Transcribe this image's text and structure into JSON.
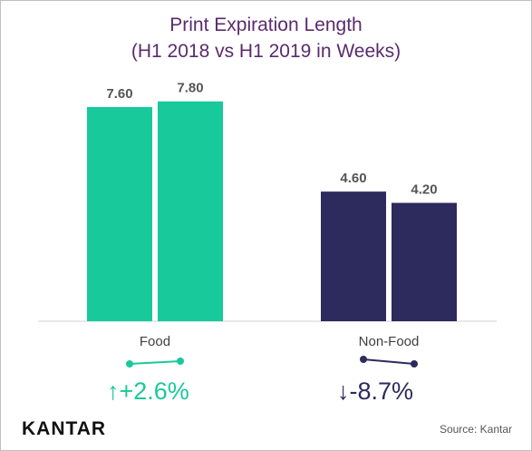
{
  "chart_data": {
    "type": "bar",
    "title": "Print Expiration Length",
    "subtitle": "(H1 2018 vs H1 2019 in Weeks)",
    "categories": [
      "Food",
      "Non-Food"
    ],
    "series": [
      {
        "values": [
          7.6,
          7.8
        ]
      },
      {
        "values": [
          4.6,
          4.2
        ]
      }
    ],
    "data_labels": [
      [
        "7.60",
        "7.80"
      ],
      [
        "4.60",
        "4.20"
      ]
    ],
    "ylim": [
      0,
      8.5
    ],
    "grid": false,
    "legend": "none"
  },
  "changes": [
    {
      "category": "Food",
      "direction": "up",
      "arrow": "↑",
      "text": "+2.6%",
      "color": "#18c99b"
    },
    {
      "category": "Non-Food",
      "direction": "down",
      "arrow": "↓",
      "text": "-8.7%",
      "color": "#2d2a5e"
    }
  ],
  "colors": {
    "food": "#18c99b",
    "nonfood": "#2d2a5e",
    "title": "#5b2a6e"
  },
  "footer": {
    "brand": "KANTAR",
    "source": "Source: Kantar"
  }
}
